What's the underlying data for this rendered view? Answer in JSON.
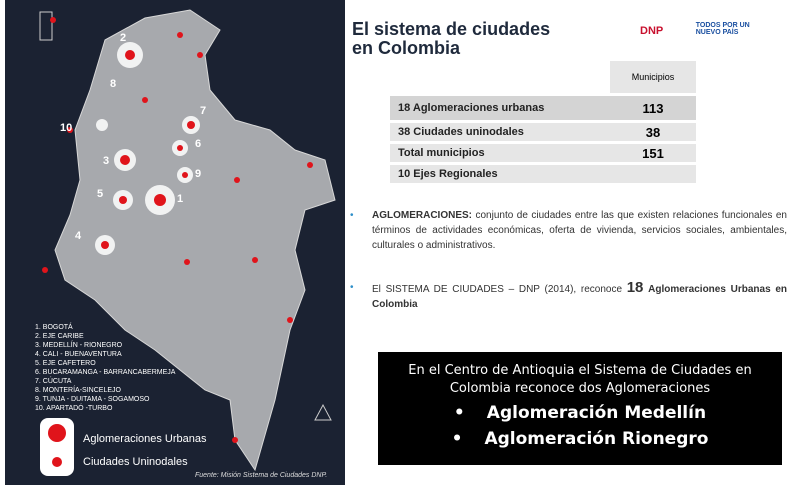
{
  "map": {
    "labels": [
      "2",
      "8",
      "7",
      "10",
      "3",
      "6",
      "9",
      "5",
      "1",
      "4"
    ],
    "list": [
      "1. BOGOTÁ",
      "2. EJE CARIBE",
      "3. MEDELLÍN - RIONEGRO",
      "4. CALI - BUENAVENTURA",
      "5. EJE CAFETERO",
      "6. BUCARAMANGA - BARRANCABERMEJA",
      "7. CÚCUTA",
      "8. MONTERÍA-SINCELEJO",
      "9. TUNJA - DUITAMA - SOGAMOSO",
      "10. APARTADÓ -TURBO"
    ],
    "legend": [
      "Aglomeraciones Urbanas",
      "Ciudades Uninodales"
    ],
    "source": "Fuente: Misión Sistema de Ciudades DNP."
  },
  "header": {
    "title": [
      "El sistema de ciudades",
      "en Colombia"
    ],
    "logo": "DNP",
    "slogan": "TODOS POR UN NUEVO PAÍS"
  },
  "table": {
    "header": "Municipios",
    "rows": [
      [
        "18 Aglomeraciones urbanas",
        "113"
      ],
      [
        "38 Ciudades uninodales",
        "38"
      ],
      [
        "Total municipios",
        "151"
      ],
      [
        "10 Ejes Regionales"
      ]
    ]
  },
  "bullets": [
    [
      "AGLOMERACIONES:",
      "conjunto de ciudades entre las que existen relaciones funcionales en términos de actividades económicas, oferta de vivienda, servicios sociales, ambientales, culturales o administrativos."
    ],
    [
      "El SISTEMA DE CIUDADES – DNP (2014), reconoce ",
      "18",
      "Aglomeraciones Urbanas en Colombia"
    ]
  ],
  "box": {
    "intro": "En el Centro de Antioquia el Sistema de Ciudades en Colombia reconoce dos Aglomeraciones",
    "items": [
      "Aglomeración Medellín",
      "Aglomeración Rionegro"
    ]
  }
}
